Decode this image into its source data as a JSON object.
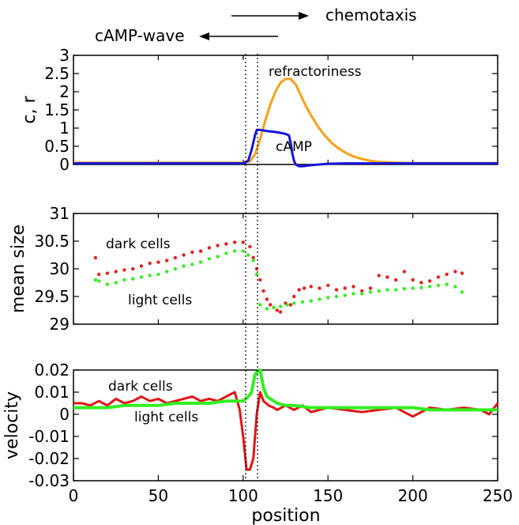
{
  "header": {
    "chemotaxis": "chemotaxis",
    "camp_wave": "cAMP-wave"
  },
  "chart_data": [
    {
      "type": "line",
      "ylabel": "c, r",
      "xlabel": "",
      "xlim": [
        0,
        250
      ],
      "ylim": [
        0,
        3
      ],
      "yticks": [
        "0",
        "0.5",
        "1",
        "1.5",
        "2",
        "2.5",
        "3"
      ],
      "annotations": [
        "refractoriness",
        "cAMP"
      ],
      "grid": false,
      "series": [
        {
          "name": "refractoriness",
          "color": "#f5a01a",
          "x": [
            0,
            100,
            104,
            107,
            110,
            113,
            116,
            119,
            122,
            125,
            128,
            131,
            134,
            137,
            140,
            144,
            148,
            152,
            156,
            160,
            165,
            170,
            175,
            180,
            190,
            200,
            250
          ],
          "y": [
            0.05,
            0.05,
            0.08,
            0.28,
            0.7,
            1.2,
            1.65,
            2.0,
            2.25,
            2.35,
            2.35,
            2.2,
            1.9,
            1.6,
            1.35,
            1.05,
            0.8,
            0.6,
            0.45,
            0.33,
            0.22,
            0.15,
            0.1,
            0.07,
            0.05,
            0.04,
            0.04
          ]
        },
        {
          "name": "cAMP",
          "color": "#1515d8",
          "x": [
            0,
            100,
            103,
            105,
            107,
            108,
            110,
            114,
            118,
            122,
            125,
            127,
            128,
            129,
            130,
            131,
            133,
            135,
            140,
            150,
            160,
            170,
            250
          ],
          "y": [
            0.03,
            0.03,
            0.1,
            0.4,
            0.8,
            0.95,
            0.95,
            0.92,
            0.9,
            0.87,
            0.84,
            0.8,
            0.6,
            0.3,
            0.1,
            0.0,
            -0.05,
            -0.05,
            -0.02,
            0.02,
            0.03,
            0.03,
            0.03
          ]
        }
      ]
    },
    {
      "type": "scatter",
      "ylabel": "mean size",
      "xlabel": "",
      "xlim": [
        0,
        250
      ],
      "ylim": [
        29,
        31
      ],
      "yticks": [
        "29",
        "29.5",
        "30",
        "30.5",
        "31"
      ],
      "annotations": [
        "dark cells",
        "light cells"
      ],
      "grid": false,
      "series": [
        {
          "name": "dark cells",
          "color": "#e02020",
          "x": [
            13,
            15,
            20,
            25,
            30,
            35,
            40,
            45,
            50,
            55,
            60,
            65,
            70,
            75,
            80,
            85,
            90,
            95,
            100,
            104,
            106,
            108,
            110,
            112,
            114,
            116,
            118,
            120,
            122,
            125,
            128,
            130,
            133,
            136,
            140,
            145,
            150,
            155,
            160,
            165,
            170,
            175,
            180,
            185,
            190,
            195,
            200,
            205,
            210,
            215,
            220,
            225,
            229
          ],
          "y": [
            30.2,
            29.9,
            29.92,
            29.95,
            29.98,
            30.0,
            30.05,
            30.1,
            30.12,
            30.15,
            30.2,
            30.25,
            30.3,
            30.32,
            30.38,
            30.42,
            30.45,
            30.48,
            30.48,
            30.4,
            30.2,
            30.0,
            29.8,
            29.6,
            29.45,
            29.35,
            29.3,
            29.25,
            29.22,
            29.38,
            29.35,
            29.5,
            29.62,
            29.65,
            29.68,
            29.65,
            29.7,
            29.62,
            29.65,
            29.68,
            29.6,
            29.65,
            29.88,
            29.85,
            29.8,
            29.95,
            29.8,
            29.75,
            29.78,
            29.85,
            29.9,
            29.95,
            29.92
          ]
        },
        {
          "name": "light cells",
          "color": "#33ee22",
          "x": [
            13,
            15,
            20,
            25,
            30,
            35,
            40,
            45,
            50,
            55,
            60,
            65,
            70,
            75,
            80,
            85,
            90,
            95,
            100,
            103,
            106,
            108,
            110,
            114,
            118,
            122,
            126,
            130,
            135,
            140,
            145,
            150,
            155,
            160,
            165,
            170,
            175,
            180,
            185,
            190,
            195,
            200,
            205,
            210,
            215,
            220,
            225,
            229
          ],
          "y": [
            29.8,
            29.78,
            29.72,
            29.75,
            29.8,
            29.82,
            29.85,
            29.88,
            29.9,
            29.95,
            30.0,
            30.05,
            30.08,
            30.12,
            30.18,
            30.22,
            30.28,
            30.32,
            30.32,
            30.25,
            30.15,
            29.9,
            29.35,
            29.28,
            29.3,
            29.32,
            29.35,
            29.38,
            29.4,
            29.42,
            29.45,
            29.48,
            29.5,
            29.52,
            29.55,
            29.55,
            29.58,
            29.6,
            29.62,
            29.62,
            29.64,
            29.65,
            29.66,
            29.68,
            29.7,
            29.72,
            29.68,
            29.58
          ]
        }
      ]
    },
    {
      "type": "line",
      "ylabel": "velocity",
      "xlabel": "position",
      "xlim": [
        0,
        250
      ],
      "ylim": [
        -0.03,
        0.02
      ],
      "xticks": [
        "0",
        "50",
        "100",
        "150",
        "200",
        "250"
      ],
      "yticks": [
        "-0.03",
        "-0.02",
        "-0.01",
        "0",
        "0.01",
        "0.02"
      ],
      "annotations": [
        "dark cells",
        "light cells"
      ],
      "grid": false,
      "series": [
        {
          "name": "dark cells",
          "color": "#dd1515",
          "x": [
            0,
            5,
            10,
            15,
            20,
            25,
            30,
            35,
            40,
            45,
            50,
            55,
            60,
            65,
            70,
            75,
            80,
            85,
            90,
            95,
            98,
            100,
            102,
            104,
            106,
            108,
            110,
            112,
            115,
            118,
            120,
            125,
            130,
            135,
            140,
            145,
            150,
            160,
            170,
            180,
            190,
            200,
            210,
            220,
            230,
            240,
            245,
            250
          ],
          "y": [
            0.005,
            0.005,
            0.004,
            0.006,
            0.004,
            0.007,
            0.005,
            0.006,
            0.008,
            0.006,
            0.007,
            0.005,
            0.006,
            0.007,
            0.008,
            0.006,
            0.007,
            0.006,
            0.008,
            0.01,
            0.002,
            -0.01,
            -0.025,
            -0.025,
            -0.02,
            0.0,
            0.01,
            0.006,
            0.004,
            0.003,
            0.002,
            0.004,
            0.002,
            0.004,
            0.001,
            0.002,
            0.003,
            0.002,
            0.001,
            0.002,
            0.003,
            -0.001,
            0.003,
            0.002,
            0.003,
            0.002,
            0.0,
            0.005
          ]
        },
        {
          "name": "light cells",
          "color": "#33ee22",
          "x": [
            0,
            10,
            20,
            30,
            40,
            50,
            60,
            70,
            80,
            90,
            95,
            100,
            103,
            105,
            107,
            108,
            110,
            112,
            114,
            116,
            118,
            120,
            125,
            130,
            140,
            150,
            160,
            170,
            180,
            190,
            200,
            210,
            220,
            230,
            240,
            250
          ],
          "y": [
            0.003,
            0.003,
            0.003,
            0.004,
            0.004,
            0.004,
            0.005,
            0.005,
            0.005,
            0.006,
            0.006,
            0.006,
            0.008,
            0.01,
            0.018,
            0.019,
            0.02,
            0.012,
            0.008,
            0.007,
            0.006,
            0.005,
            0.004,
            0.004,
            0.003,
            0.003,
            0.003,
            0.003,
            0.003,
            0.003,
            0.003,
            0.002,
            0.002,
            0.002,
            0.002,
            0.002
          ]
        }
      ]
    }
  ]
}
